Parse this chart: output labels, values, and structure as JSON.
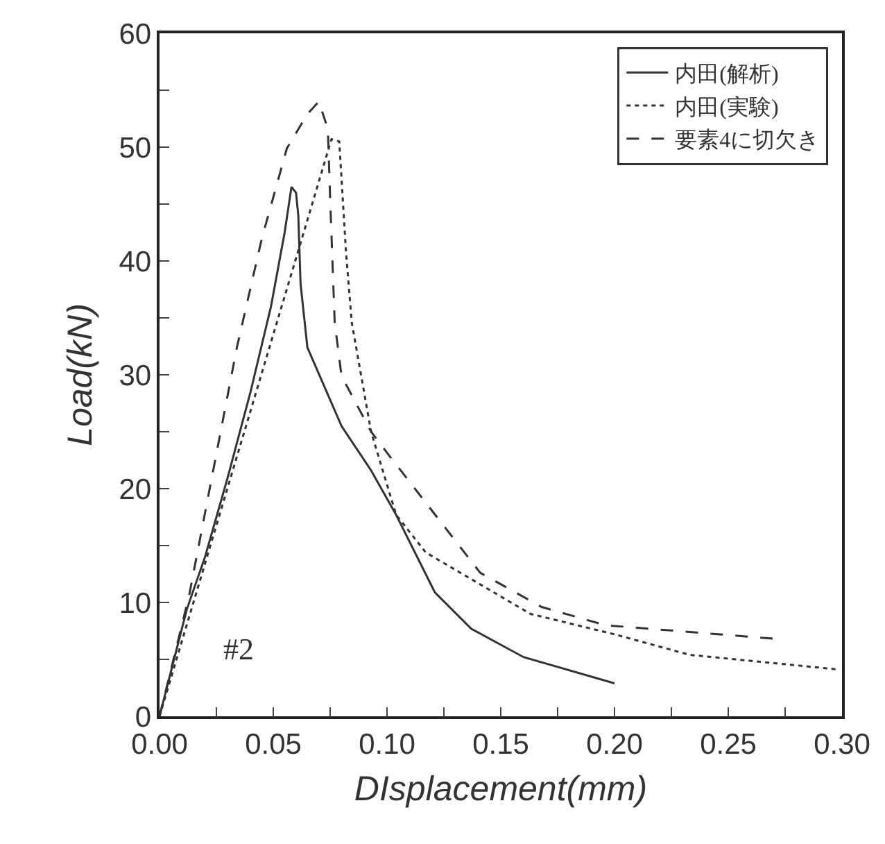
{
  "chart_data": {
    "type": "line",
    "xlabel": "DIsplacement(mm)",
    "ylabel": "Load(kN)",
    "xlim": [
      0,
      0.3
    ],
    "ylim": [
      0,
      60
    ],
    "xticks": [
      {
        "value": 0,
        "label": "0.00"
      },
      {
        "value": 0.025,
        "label": null
      },
      {
        "value": 0.05,
        "label": "0.05"
      },
      {
        "value": 0.075,
        "label": null
      },
      {
        "value": 0.1,
        "label": "0.10"
      },
      {
        "value": 0.125,
        "label": null
      },
      {
        "value": 0.15,
        "label": "0.15"
      },
      {
        "value": 0.175,
        "label": null
      },
      {
        "value": 0.2,
        "label": "0.20"
      },
      {
        "value": 0.225,
        "label": null
      },
      {
        "value": 0.25,
        "label": "0.25"
      },
      {
        "value": 0.275,
        "label": null
      },
      {
        "value": 0.3,
        "label": "0.30"
      }
    ],
    "yticks": [
      0,
      {
        "value": 5,
        "label": null
      },
      10,
      {
        "value": 15,
        "label": null
      },
      20,
      {
        "value": 25,
        "label": null
      },
      30,
      {
        "value": 35,
        "label": null
      },
      40,
      {
        "value": 45,
        "label": null
      },
      50,
      {
        "value": 55,
        "label": null
      },
      60
    ],
    "grid": false,
    "legend": "top right",
    "marker": "none",
    "annotations": [
      "#2"
    ],
    "series": [
      {
        "name": "内田(解析)",
        "color": "#333333",
        "line_style": "solid",
        "x": [
          0,
          0.012,
          0.02,
          0.03,
          0.04,
          0.049,
          0.055,
          0.058,
          0.06,
          0.061,
          0.062,
          0.065,
          0.08,
          0.093,
          0.104,
          0.121,
          0.137,
          0.16,
          0.2
        ],
        "values": [
          0,
          9.4,
          14,
          21,
          28.5,
          36,
          42.5,
          46.5,
          46,
          44,
          38,
          32.4,
          25.5,
          21.6,
          17.7,
          10.9,
          7.7,
          5.2,
          2.9
        ]
      },
      {
        "name": "内田(実験)",
        "color": "#333333",
        "line_style": "dotted",
        "x": [
          0,
          0.0756,
          0.079,
          0.082,
          0.0845,
          0.093,
          0.104,
          0.117,
          0.163,
          0.2,
          0.233,
          0.299
        ],
        "values": [
          0,
          50.7,
          50.5,
          40.7,
          34.6,
          25,
          17.7,
          14.4,
          9,
          7.2,
          5.4,
          4.1
        ]
      },
      {
        "name": "要素4に切欠き",
        "color": "#333333",
        "line_style": "dashed",
        "x": [
          0,
          0.013,
          0.034,
          0.045,
          0.056,
          0.065,
          0.07,
          0.074,
          0.075,
          0.077,
          0.08,
          0.093,
          0.1006,
          0.141,
          0.168,
          0.196,
          0.271
        ],
        "values": [
          0,
          10.6,
          32.4,
          42,
          49.9,
          52.9,
          54,
          51.6,
          45.5,
          34.6,
          29.9,
          25,
          23,
          12.6,
          9.6,
          8,
          6.8
        ]
      }
    ]
  }
}
